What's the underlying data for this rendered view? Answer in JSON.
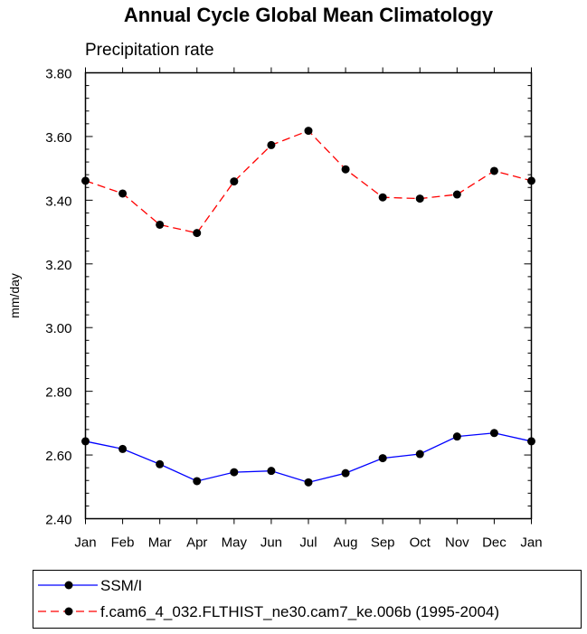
{
  "chart_data": {
    "type": "line",
    "title": "Annual Cycle Global Mean Climatology",
    "subtitle": "Precipitation rate",
    "xlabel": "",
    "ylabel": "mm/day",
    "categories": [
      "Jan",
      "Feb",
      "Mar",
      "Apr",
      "May",
      "Jun",
      "Jul",
      "Aug",
      "Sep",
      "Oct",
      "Nov",
      "Dec",
      "Jan"
    ],
    "ylim": [
      2.4,
      3.8
    ],
    "yticks": [
      "2.40",
      "2.60",
      "2.80",
      "3.00",
      "3.20",
      "3.40",
      "3.60",
      "3.80"
    ],
    "grid": false,
    "legend_position": "bottom",
    "series": [
      {
        "name": "SSM/I",
        "color": "#0000ff",
        "line_style": "solid",
        "marker": "filled-circle",
        "values": [
          2.643,
          2.619,
          2.571,
          2.518,
          2.546,
          2.55,
          2.514,
          2.543,
          2.59,
          2.603,
          2.658,
          2.669,
          2.643
        ]
      },
      {
        "name": "f.cam6_4_032.FLTHIST_ne30.cam7_ke.006b (1995-2004)",
        "color": "#ff0000",
        "line_style": "dashed",
        "marker": "filled-circle",
        "values": [
          3.461,
          3.421,
          3.323,
          3.297,
          3.459,
          3.573,
          3.618,
          3.497,
          3.409,
          3.405,
          3.418,
          3.492,
          3.461
        ]
      }
    ]
  }
}
